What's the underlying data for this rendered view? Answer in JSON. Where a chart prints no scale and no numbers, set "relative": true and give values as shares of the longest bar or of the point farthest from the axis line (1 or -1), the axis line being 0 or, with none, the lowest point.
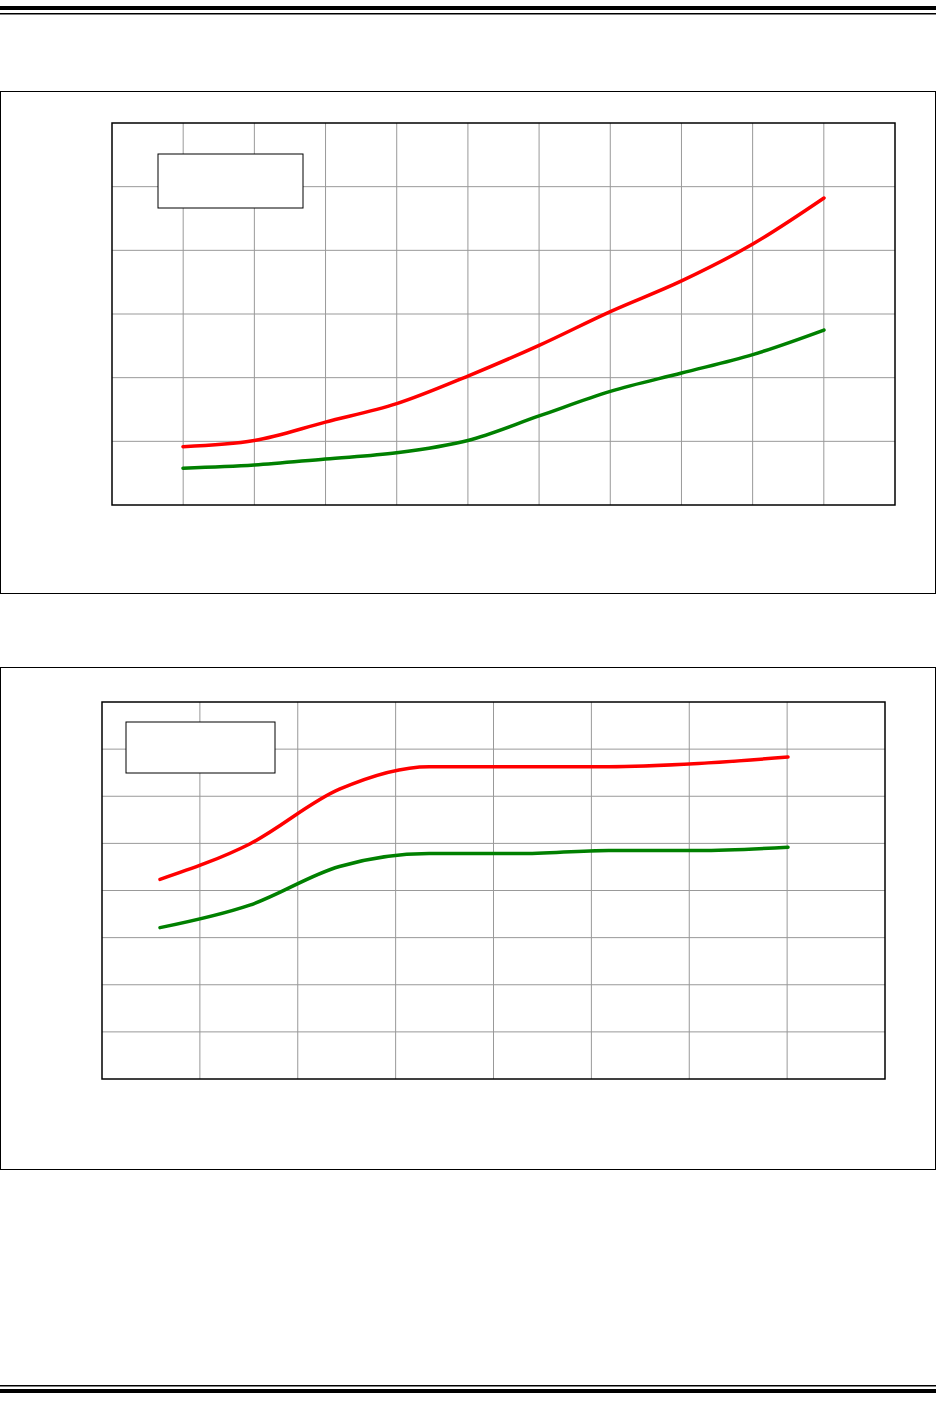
{
  "chart_data": [
    {
      "type": "line",
      "relative": true,
      "grid": true,
      "categories": [
        null,
        null,
        null,
        null,
        null,
        null,
        null,
        null,
        null,
        null
      ],
      "series": [
        {
          "color": "#ff0000",
          "values": [
            0.19,
            0.21,
            0.27,
            0.33,
            0.42,
            0.52,
            0.63,
            0.73,
            0.85,
            1
          ]
        },
        {
          "color": "#008000",
          "values": [
            0.12,
            0.13,
            0.15,
            0.17,
            0.21,
            0.29,
            0.37,
            0.43,
            0.49,
            0.57
          ]
        }
      ]
    },
    {
      "type": "line",
      "relative": true,
      "grid": true,
      "categories": [
        null,
        null,
        null,
        null,
        null,
        null,
        null,
        null
      ],
      "series": [
        {
          "color": "#ff0000",
          "values": [
            0.62,
            0.73,
            0.9,
            0.97,
            0.97,
            0.97,
            0.98,
            1
          ]
        },
        {
          "color": "#008000",
          "values": [
            0.47,
            0.54,
            0.66,
            0.7,
            0.7,
            0.71,
            0.71,
            0.72
          ]
        }
      ]
    }
  ]
}
